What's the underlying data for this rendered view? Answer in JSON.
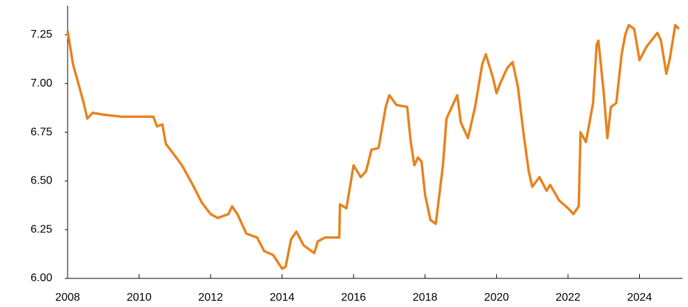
{
  "chart_data": {
    "type": "line",
    "color": "#e8821e",
    "x": [
      2008.0,
      2008.15,
      2008.3,
      2008.45,
      2008.55,
      2008.7,
      2009.0,
      2009.5,
      2010.0,
      2010.4,
      2010.5,
      2010.65,
      2010.75,
      2011.0,
      2011.2,
      2011.5,
      2011.75,
      2012.0,
      2012.2,
      2012.5,
      2012.6,
      2012.75,
      2013.0,
      2013.3,
      2013.5,
      2013.75,
      2014.0,
      2014.1,
      2014.25,
      2014.4,
      2014.6,
      2014.9,
      2015.0,
      2015.2,
      2015.5,
      2015.6,
      2015.62,
      2015.8,
      2016.0,
      2016.2,
      2016.35,
      2016.5,
      2016.7,
      2016.9,
      2017.0,
      2017.2,
      2017.5,
      2017.6,
      2017.7,
      2017.8,
      2017.9,
      2018.0,
      2018.15,
      2018.3,
      2018.5,
      2018.6,
      2018.8,
      2018.9,
      2019.0,
      2019.2,
      2019.4,
      2019.6,
      2019.7,
      2019.9,
      2020.0,
      2020.1,
      2020.3,
      2020.45,
      2020.6,
      2020.75,
      2020.9,
      2021.0,
      2021.2,
      2021.4,
      2021.5,
      2021.75,
      2022.0,
      2022.15,
      2022.3,
      2022.35,
      2022.5,
      2022.7,
      2022.8,
      2022.85,
      2023.0,
      2023.1,
      2023.2,
      2023.35,
      2023.5,
      2023.6,
      2023.7,
      2023.85,
      2024.0,
      2024.2,
      2024.5,
      2024.6,
      2024.75,
      2024.85,
      2025.0,
      2025.1
    ],
    "values": [
      7.27,
      7.1,
      7.0,
      6.9,
      6.82,
      6.85,
      6.84,
      6.83,
      6.83,
      6.83,
      6.78,
      6.79,
      6.69,
      6.63,
      6.58,
      6.48,
      6.39,
      6.33,
      6.31,
      6.33,
      6.37,
      6.33,
      6.23,
      6.21,
      6.14,
      6.12,
      6.05,
      6.06,
      6.2,
      6.24,
      6.17,
      6.13,
      6.19,
      6.21,
      6.21,
      6.21,
      6.38,
      6.36,
      6.58,
      6.52,
      6.55,
      6.66,
      6.67,
      6.88,
      6.94,
      6.89,
      6.88,
      6.7,
      6.58,
      6.62,
      6.6,
      6.43,
      6.3,
      6.28,
      6.58,
      6.82,
      6.9,
      6.94,
      6.8,
      6.72,
      6.88,
      7.1,
      7.15,
      7.03,
      6.95,
      7.0,
      7.08,
      7.11,
      6.98,
      6.75,
      6.55,
      6.47,
      6.52,
      6.45,
      6.48,
      6.4,
      6.36,
      6.33,
      6.37,
      6.75,
      6.7,
      6.9,
      7.2,
      7.22,
      6.95,
      6.72,
      6.88,
      6.9,
      7.15,
      7.25,
      7.3,
      7.28,
      7.12,
      7.19,
      7.26,
      7.22,
      7.05,
      7.13,
      7.3,
      7.28
    ],
    "xlim": [
      2008,
      2025.2
    ],
    "xticks": [
      2008,
      2010,
      2012,
      2014,
      2016,
      2018,
      2020,
      2022,
      2024
    ],
    "ylim": [
      6,
      7.4
    ],
    "yticks": [
      {
        "value": 6,
        "label": "6.00"
      },
      6.25,
      {
        "value": 6.5,
        "label": "6.50"
      },
      6.75,
      {
        "value": 7,
        "label": "7.00"
      },
      7.25
    ]
  }
}
